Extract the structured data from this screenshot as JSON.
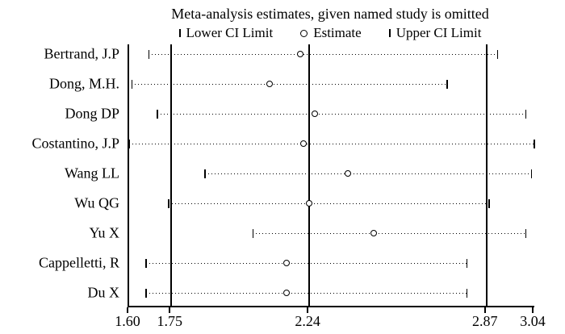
{
  "title": "Meta-analysis estimates, given named study is omitted",
  "legend": {
    "lower": "Lower CI Limit",
    "estimate": "Estimate",
    "upper": "Upper CI Limit"
  },
  "colors": {
    "foreground": "#000000",
    "background": "#ffffff"
  },
  "chart_data": {
    "type": "scatter",
    "subtype": "leave-one-out-forest-plot",
    "title": "Meta-analysis estimates, given named study is omitted",
    "xlabel": "",
    "ylabel": "",
    "xlim": [
      1.6,
      3.04
    ],
    "x_ticks": [
      1.6,
      1.75,
      2.24,
      2.87,
      3.04
    ],
    "grid": false,
    "legend_position": "top-center",
    "reference_lines": {
      "overall_lower_ci": 1.75,
      "overall_estimate": 2.24,
      "overall_upper_ci": 2.87
    },
    "series_names": [
      "Lower CI Limit",
      "Estimate",
      "Upper CI Limit"
    ],
    "studies": [
      {
        "label": "Bertrand, J.P",
        "lower": 1.67,
        "estimate": 2.21,
        "upper": 2.91
      },
      {
        "label": "Dong, M.H.",
        "lower": 1.61,
        "estimate": 2.1,
        "upper": 2.73
      },
      {
        "label": "Dong DP",
        "lower": 1.7,
        "estimate": 2.26,
        "upper": 3.01
      },
      {
        "label": "Costantino, J.P",
        "lower": 1.6,
        "estimate": 2.22,
        "upper": 3.04
      },
      {
        "label": "Wang LL",
        "lower": 1.87,
        "estimate": 2.38,
        "upper": 3.03
      },
      {
        "label": "Wu QG",
        "lower": 1.74,
        "estimate": 2.24,
        "upper": 2.88
      },
      {
        "label": "Yu X",
        "lower": 2.04,
        "estimate": 2.47,
        "upper": 3.01
      },
      {
        "label": "Cappelletti, R",
        "lower": 1.66,
        "estimate": 2.16,
        "upper": 2.8
      },
      {
        "label": "Du X",
        "lower": 1.66,
        "estimate": 2.16,
        "upper": 2.8
      }
    ]
  }
}
